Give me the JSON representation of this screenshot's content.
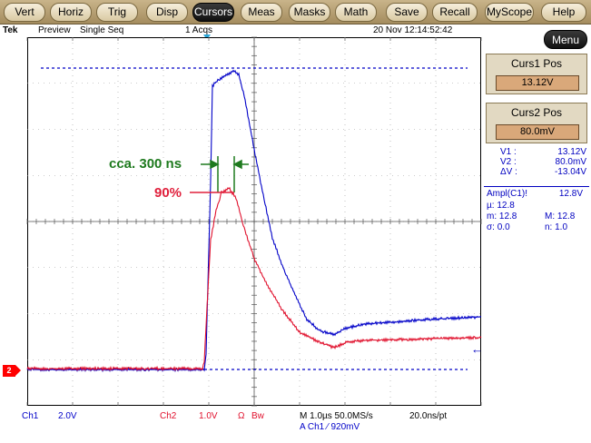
{
  "menu": {
    "items": [
      {
        "label": "Vert"
      },
      {
        "label": "Horiz"
      },
      {
        "label": "Trig"
      },
      {
        "label": "Disp"
      },
      {
        "label": "Cursors"
      },
      {
        "label": "Meas"
      },
      {
        "label": "Masks"
      },
      {
        "label": "Math"
      },
      {
        "label": "Save"
      },
      {
        "label": "Recall"
      },
      {
        "label": "MyScope"
      },
      {
        "label": "Help"
      }
    ],
    "active": "Cursors"
  },
  "status": {
    "brand": "Tek",
    "mode": "Preview",
    "acq_mode": "Single Seq",
    "acqs": "1 Acqs",
    "datetime": "20 Nov 12:14:52:42"
  },
  "right_panel": {
    "menu_label": "Menu",
    "curs1_title": "Curs1 Pos",
    "curs1_value": "13.12V",
    "curs2_title": "Curs2 Pos",
    "curs2_value": "80.0mV",
    "v1_label": "V1 :",
    "v1_value": "13.12V",
    "v2_label": "V2 :",
    "v2_value": "80.0mV",
    "dv_label": "ΔV :",
    "dv_value": "-13.04V",
    "meas_label": "Ampl(C1)!",
    "meas_value": "12.8V",
    "mu_label": "µ: 12.8",
    "m_label": "m: 12.8",
    "M_label": "M: 12.8",
    "sigma_label": "σ: 0.0",
    "n_label": "n: 1.0"
  },
  "annotations": {
    "time_note": "cca. 300 ns",
    "level_note": "90%"
  },
  "channel_marker": "2",
  "bottom": {
    "ch1": "Ch1",
    "ch1_scale": "2.0V",
    "ch2": "Ch2",
    "ch2_scale": "1.0V",
    "ohm": "Ω",
    "bw": "Bw",
    "timebase": "M 1.0µs 50.0MS/s",
    "pts": "20.0ns/pt",
    "trigger": "A  Ch1  ⁄  920mV"
  },
  "colors": {
    "ch1": "#0000c8",
    "ch2": "#e0102c",
    "annotation_green": "#1e7a1e",
    "annotation_red": "#e0203c"
  }
}
